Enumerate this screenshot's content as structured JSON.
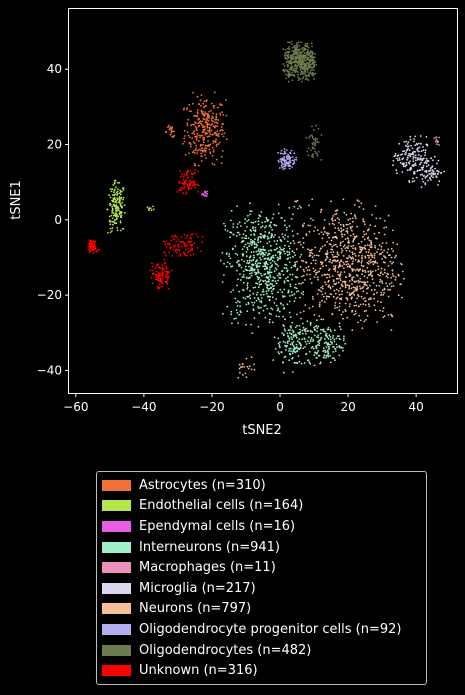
{
  "chart_data": {
    "type": "scatter",
    "title": "",
    "xlabel": "tSNE2",
    "ylabel": "tSNE1",
    "xlim": [
      -62,
      52
    ],
    "ylim": [
      -46,
      56
    ],
    "xticks": [
      -60,
      -40,
      -20,
      0,
      20,
      40
    ],
    "yticks": [
      -40,
      -20,
      0,
      20,
      40
    ],
    "grid": false,
    "legend_position": "bottom",
    "series": [
      {
        "name": "Astrocytes (n=310)",
        "color": "#f07038",
        "count": 310,
        "clusters": [
          {
            "cx": -22,
            "cy": 24,
            "sx": 3,
            "sy": 4.5,
            "n": 290
          },
          {
            "cx": -32,
            "cy": 23.5,
            "sx": 1,
            "sy": 0.8,
            "n": 20
          }
        ]
      },
      {
        "name": "Endothelial cells (n=164)",
        "color": "#b4e64e",
        "count": 164,
        "clusters": [
          {
            "cx": -48,
            "cy": 3,
            "sx": 1.3,
            "sy": 3.5,
            "n": 156
          },
          {
            "cx": -38,
            "cy": 3,
            "sx": 0.6,
            "sy": 0.3,
            "n": 8
          }
        ]
      },
      {
        "name": "Ependymal cells (n=16)",
        "color": "#e85ee4",
        "count": 16,
        "clusters": [
          {
            "cx": -22,
            "cy": 7,
            "sx": 0.5,
            "sy": 0.4,
            "n": 16
          }
        ]
      },
      {
        "name": "Interneurons (n=941)",
        "color": "#9ff0c6",
        "count": 941,
        "clusters": [
          {
            "cx": -5,
            "cy": -12,
            "sx": 5.5,
            "sy": 7.5,
            "n": 650
          },
          {
            "cx": 5,
            "cy": -33,
            "sx": 3.5,
            "sy": 3.5,
            "n": 180
          },
          {
            "cx": 14,
            "cy": -33,
            "sx": 2.5,
            "sy": 2.5,
            "n": 111
          }
        ]
      },
      {
        "name": "Macrophages (n=11)",
        "color": "#ec8fb9",
        "count": 11,
        "clusters": [
          {
            "cx": 46,
            "cy": 21,
            "sx": 0.4,
            "sy": 0.6,
            "n": 11
          }
        ]
      },
      {
        "name": "Microglia (n=217)",
        "color": "#dcd8f0",
        "count": 217,
        "clusters": [
          {
            "cx": 38,
            "cy": 17,
            "sx": 2.5,
            "sy": 2.5,
            "n": 120
          },
          {
            "cx": 43,
            "cy": 13,
            "sx": 2.5,
            "sy": 2,
            "n": 97
          }
        ]
      },
      {
        "name": "Neurons (n=797)",
        "color": "#f2be96",
        "count": 797,
        "clusters": [
          {
            "cx": 20,
            "cy": -12,
            "sx": 7.5,
            "sy": 8,
            "n": 777
          },
          {
            "cx": -10,
            "cy": -39,
            "sx": 1.5,
            "sy": 1.5,
            "n": 20
          }
        ]
      },
      {
        "name": "Oligodendrocyte progenitor cells (n=92)",
        "color": "#b2aef0",
        "count": 92,
        "clusters": [
          {
            "cx": 2,
            "cy": 16,
            "sx": 1.3,
            "sy": 1.3,
            "n": 92
          }
        ]
      },
      {
        "name": "Oligodendrocytes (n=482)",
        "color": "#6d7c4f",
        "count": 482,
        "clusters": [
          {
            "cx": 6,
            "cy": 42,
            "sx": 2.5,
            "sy": 2.5,
            "n": 440
          },
          {
            "cx": 10,
            "cy": 21,
            "sx": 1.2,
            "sy": 2.5,
            "n": 42
          }
        ]
      },
      {
        "name": "Unknown (n=316)",
        "color": "#ff0000",
        "count": 316,
        "clusters": [
          {
            "cx": -27,
            "cy": 10,
            "sx": 1.5,
            "sy": 1.5,
            "n": 80
          },
          {
            "cx": -29,
            "cy": -7,
            "sx": 3.5,
            "sy": 1.8,
            "n": 90
          },
          {
            "cx": -35,
            "cy": -15,
            "sx": 1.5,
            "sy": 1.8,
            "n": 90
          },
          {
            "cx": -55,
            "cy": -7,
            "sx": 0.7,
            "sy": 1.0,
            "n": 56
          }
        ]
      }
    ]
  }
}
